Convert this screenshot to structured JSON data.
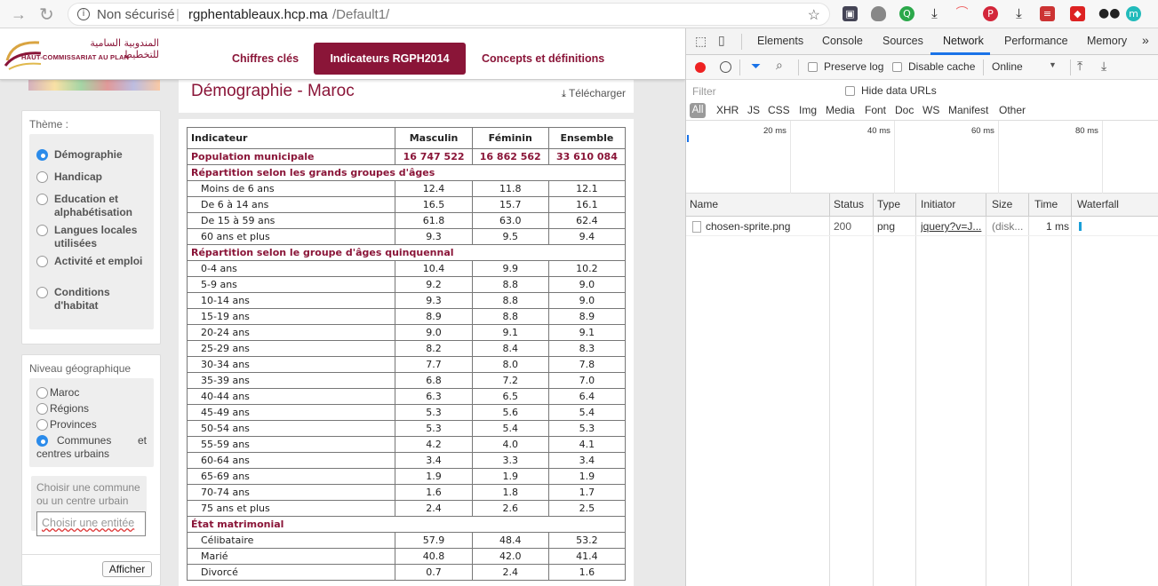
{
  "browser": {
    "security_label": "Non sécurisé",
    "url_host": "rgphentableaux.hcp.ma",
    "url_path": "/Default1/"
  },
  "site": {
    "logo_arabic": "المندوبية السامية للتخطيط",
    "logo_french": "HAUT-COMMISSARIAT AU PLAN",
    "nav": [
      "Chiffres clés",
      "Indicateurs RGPH2014",
      "Concepts et définitions"
    ],
    "brand_color": "#8a1538"
  },
  "sidebar": {
    "theme_label": "Thème :",
    "themes": [
      {
        "label": "Démographie",
        "selected": true
      },
      {
        "label": "Handicap",
        "selected": false
      },
      {
        "label": "Education et alphabétisation",
        "selected": false
      },
      {
        "label": "Langues locales utilisées",
        "selected": false
      },
      {
        "label": "Activité et emploi",
        "selected": false
      },
      {
        "label": "Conditions d'habitat",
        "selected": false
      }
    ],
    "geo_label": "Niveau géographique",
    "geo_levels": [
      {
        "label": "Maroc",
        "selected": false
      },
      {
        "label": "Régions",
        "selected": false
      },
      {
        "label": "Provinces",
        "selected": false
      },
      {
        "label": "Communes et centres urbains",
        "selected": true
      }
    ],
    "choose_label": "Choisir une commune ou un centre urbain",
    "choose_placeholder": "Choisir une entitée",
    "afficher_label": "Afficher"
  },
  "content": {
    "title": "Démographie - Maroc",
    "download_label": "Télécharger",
    "table_headers": [
      "Indicateur",
      "Masculin",
      "Féminin",
      "Ensemble"
    ],
    "population": {
      "label": "Population municipale",
      "values": [
        "16 747 522",
        "16 862 562",
        "33 610 084"
      ]
    },
    "sections": [
      {
        "title": "Répartition selon les grands groupes d'âges",
        "rows": [
          [
            "Moins de 6 ans",
            "12.4",
            "11.8",
            "12.1"
          ],
          [
            "De 6 à 14 ans",
            "16.5",
            "15.7",
            "16.1"
          ],
          [
            "De 15 à 59 ans",
            "61.8",
            "63.0",
            "62.4"
          ],
          [
            "60 ans et plus",
            "9.3",
            "9.5",
            "9.4"
          ]
        ]
      },
      {
        "title": "Répartition selon le groupe d'âges quinquennal",
        "rows": [
          [
            "0-4 ans",
            "10.4",
            "9.9",
            "10.2"
          ],
          [
            "5-9 ans",
            "9.2",
            "8.8",
            "9.0"
          ],
          [
            "10-14 ans",
            "9.3",
            "8.8",
            "9.0"
          ],
          [
            "15-19 ans",
            "8.9",
            "8.8",
            "8.9"
          ],
          [
            "20-24 ans",
            "9.0",
            "9.1",
            "9.1"
          ],
          [
            "25-29 ans",
            "8.2",
            "8.4",
            "8.3"
          ],
          [
            "30-34 ans",
            "7.7",
            "8.0",
            "7.8"
          ],
          [
            "35-39 ans",
            "6.8",
            "7.2",
            "7.0"
          ],
          [
            "40-44 ans",
            "6.3",
            "6.5",
            "6.4"
          ],
          [
            "45-49 ans",
            "5.3",
            "5.6",
            "5.4"
          ],
          [
            "50-54 ans",
            "5.3",
            "5.4",
            "5.3"
          ],
          [
            "55-59 ans",
            "4.2",
            "4.0",
            "4.1"
          ],
          [
            "60-64 ans",
            "3.4",
            "3.3",
            "3.4"
          ],
          [
            "65-69 ans",
            "1.9",
            "1.9",
            "1.9"
          ],
          [
            "70-74 ans",
            "1.6",
            "1.8",
            "1.7"
          ],
          [
            "75 ans et plus",
            "2.4",
            "2.6",
            "2.5"
          ]
        ]
      },
      {
        "title": "État matrimonial",
        "rows": [
          [
            "Célibataire",
            "57.9",
            "48.4",
            "53.2"
          ],
          [
            "Marié",
            "40.8",
            "42.0",
            "41.4"
          ],
          [
            "Divorcé",
            "0.7",
            "2.4",
            "1.6"
          ]
        ]
      }
    ]
  },
  "devtools": {
    "tabs": [
      "Elements",
      "Console",
      "Sources",
      "Network",
      "Performance",
      "Memory"
    ],
    "active_tab": "Network",
    "more": "»",
    "preserve_log": "Preserve log",
    "disable_cache": "Disable cache",
    "throttle": "Online",
    "filter_placeholder": "Filter",
    "hide_data_urls": "Hide data URLs",
    "types": [
      "All",
      "XHR",
      "JS",
      "CSS",
      "Img",
      "Media",
      "Font",
      "Doc",
      "WS",
      "Manifest",
      "Other"
    ],
    "timeline_labels": [
      "20 ms",
      "40 ms",
      "60 ms",
      "80 ms"
    ],
    "columns": [
      "Name",
      "Status",
      "Type",
      "Initiator",
      "Size",
      "Time",
      "Waterfall"
    ],
    "rows": [
      {
        "name": "chosen-sprite.png",
        "status": "200",
        "type": "png",
        "initiator": "jquery?v=J...",
        "size": "(disk...",
        "time": "1 ms"
      }
    ]
  }
}
